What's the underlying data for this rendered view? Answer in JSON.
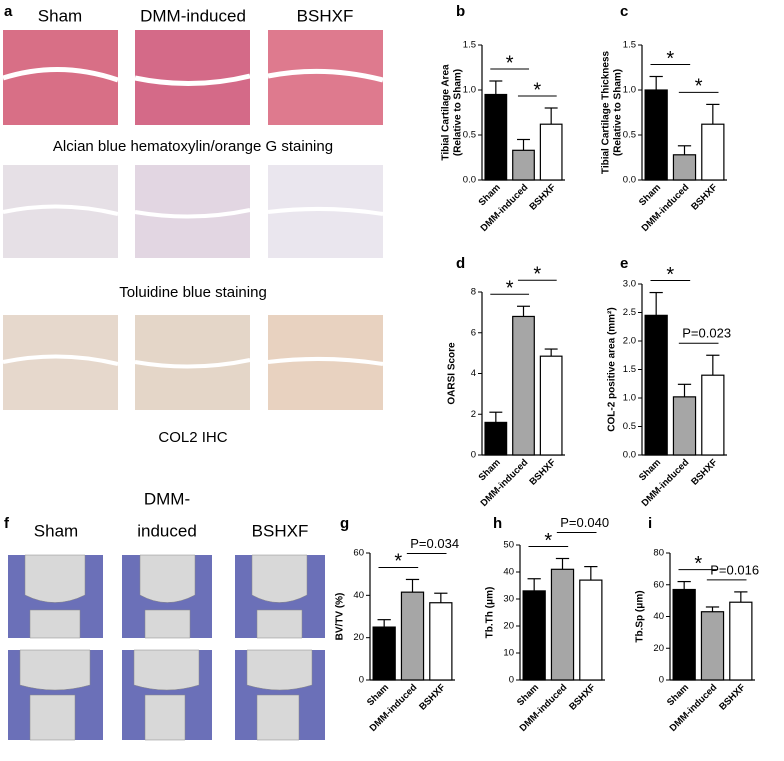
{
  "panel_a": {
    "letter": "a",
    "columns": [
      "Sham",
      "DMM-induced",
      "BSHXF"
    ],
    "captions": [
      "Alcian blue hematoxylin/orange G staining",
      "Toluidine blue staining",
      "COL2 IHC"
    ]
  },
  "panel_f": {
    "letter": "f",
    "columns": [
      [
        "Sham"
      ],
      [
        "DMM-",
        "induced"
      ],
      [
        "BSHXF"
      ]
    ]
  },
  "chart_data": [
    {
      "type": "bar",
      "letter": "b",
      "ylabel": [
        "Tibial Cartilage Area",
        "(Relative to Sham)"
      ],
      "categories": [
        "Sham",
        "DMM-induced",
        "BSHXF"
      ],
      "values": [
        0.95,
        0.33,
        0.62
      ],
      "errors": [
        0.15,
        0.12,
        0.18
      ],
      "colors": [
        "#000000",
        "#a6a6a6",
        "#ffffff"
      ],
      "ylim": [
        0,
        1.5
      ],
      "yticks": [
        {
          "value": 0,
          "label": "0.0"
        },
        0.5,
        {
          "value": 1,
          "label": "1.0"
        },
        1.5
      ],
      "brackets": [
        {
          "label": "*",
          "between": [
            "Sham",
            "DMM-induced"
          ]
        },
        {
          "label": "*",
          "between": [
            "DMM-induced",
            "BSHXF"
          ]
        }
      ]
    },
    {
      "type": "bar",
      "letter": "c",
      "ylabel": [
        "Tibial Cartilage Thickness",
        "(Relative to Sham)"
      ],
      "categories": [
        "Sham",
        "DMM-induced",
        "BSHXF"
      ],
      "values": [
        1.0,
        0.28,
        0.62
      ],
      "errors": [
        0.15,
        0.1,
        0.22
      ],
      "colors": [
        "#000000",
        "#a6a6a6",
        "#ffffff"
      ],
      "ylim": [
        0,
        1.5
      ],
      "yticks": [
        {
          "value": 0,
          "label": "0.0"
        },
        0.5,
        {
          "value": 1,
          "label": "1.0"
        },
        1.5
      ],
      "brackets": [
        {
          "label": "*",
          "between": [
            "Sham",
            "DMM-induced"
          ]
        },
        {
          "label": "*",
          "between": [
            "DMM-induced",
            "BSHXF"
          ]
        }
      ]
    },
    {
      "type": "bar",
      "letter": "d",
      "ylabel": [
        "OARSI Score"
      ],
      "categories": [
        "Sham",
        "DMM-induced",
        "BSHXF"
      ],
      "values": [
        1.6,
        6.8,
        4.85
      ],
      "errors": [
        0.5,
        0.5,
        0.35
      ],
      "colors": [
        "#000000",
        "#a6a6a6",
        "#ffffff"
      ],
      "ylim": [
        0,
        8
      ],
      "yticks": [
        0,
        2,
        4,
        6,
        8
      ],
      "brackets": [
        {
          "label": "*",
          "between": [
            "Sham",
            "DMM-induced"
          ]
        },
        {
          "label": "*",
          "between": [
            "DMM-induced",
            "BSHXF"
          ]
        }
      ]
    },
    {
      "type": "bar",
      "letter": "e",
      "ylabel": [
        "COL-2 positive area (mm²)"
      ],
      "categories": [
        "Sham",
        "DMM-induced",
        "BSHXF"
      ],
      "values": [
        2.45,
        1.02,
        1.4
      ],
      "errors": [
        0.4,
        0.22,
        0.35
      ],
      "colors": [
        "#000000",
        "#a6a6a6",
        "#ffffff"
      ],
      "ylim": [
        0,
        3
      ],
      "yticks": [
        {
          "value": 0,
          "label": "0.0"
        },
        0.5,
        {
          "value": 1,
          "label": "1.0"
        },
        1.5,
        {
          "value": 2,
          "label": "2.0"
        },
        2.5,
        {
          "value": 3,
          "label": "3.0"
        }
      ],
      "brackets": [
        {
          "label": "*",
          "between": [
            "Sham",
            "DMM-induced"
          ]
        },
        {
          "label": "P=0.023",
          "between": [
            "DMM-induced",
            "BSHXF"
          ]
        }
      ]
    },
    {
      "type": "bar",
      "letter": "g",
      "ylabel": [
        "BV/TV (%)"
      ],
      "categories": [
        "Sham",
        "DMM-induced",
        "BSHXF"
      ],
      "values": [
        25,
        41.5,
        36.5
      ],
      "errors": [
        3.5,
        6,
        4.5
      ],
      "colors": [
        "#000000",
        "#a6a6a6",
        "#ffffff"
      ],
      "ylim": [
        0,
        60
      ],
      "yticks": [
        0,
        20,
        40,
        60
      ],
      "brackets": [
        {
          "label": "*",
          "between": [
            "Sham",
            "DMM-induced"
          ]
        },
        {
          "label": "P=0.034",
          "between": [
            "DMM-induced",
            "BSHXF"
          ]
        }
      ]
    },
    {
      "type": "bar",
      "letter": "h",
      "ylabel": [
        "Tb.Th (μm)"
      ],
      "categories": [
        "Sham",
        "DMM-induced",
        "BSHXF"
      ],
      "values": [
        33,
        41,
        37
      ],
      "errors": [
        4.5,
        4,
        5
      ],
      "colors": [
        "#000000",
        "#a6a6a6",
        "#ffffff"
      ],
      "ylim": [
        0,
        50
      ],
      "yticks": [
        0,
        10,
        20,
        30,
        40,
        50
      ],
      "brackets": [
        {
          "label": "*",
          "between": [
            "Sham",
            "DMM-induced"
          ]
        },
        {
          "label": "P=0.040",
          "between": [
            "DMM-induced",
            "BSHXF"
          ]
        }
      ]
    },
    {
      "type": "bar",
      "letter": "i",
      "ylabel": [
        "Tb.Sp (μm)"
      ],
      "categories": [
        "Sham",
        "DMM-induced",
        "BSHXF"
      ],
      "values": [
        57,
        43,
        49
      ],
      "errors": [
        5,
        3,
        6.5
      ],
      "colors": [
        "#000000",
        "#a6a6a6",
        "#ffffff"
      ],
      "ylim": [
        0,
        80
      ],
      "yticks": [
        0,
        20,
        40,
        60,
        80
      ],
      "brackets": [
        {
          "label": "*",
          "between": [
            "Sham",
            "DMM-induced"
          ]
        },
        {
          "label": "P=0.016",
          "between": [
            "DMM-induced",
            "BSHXF"
          ]
        }
      ]
    }
  ]
}
